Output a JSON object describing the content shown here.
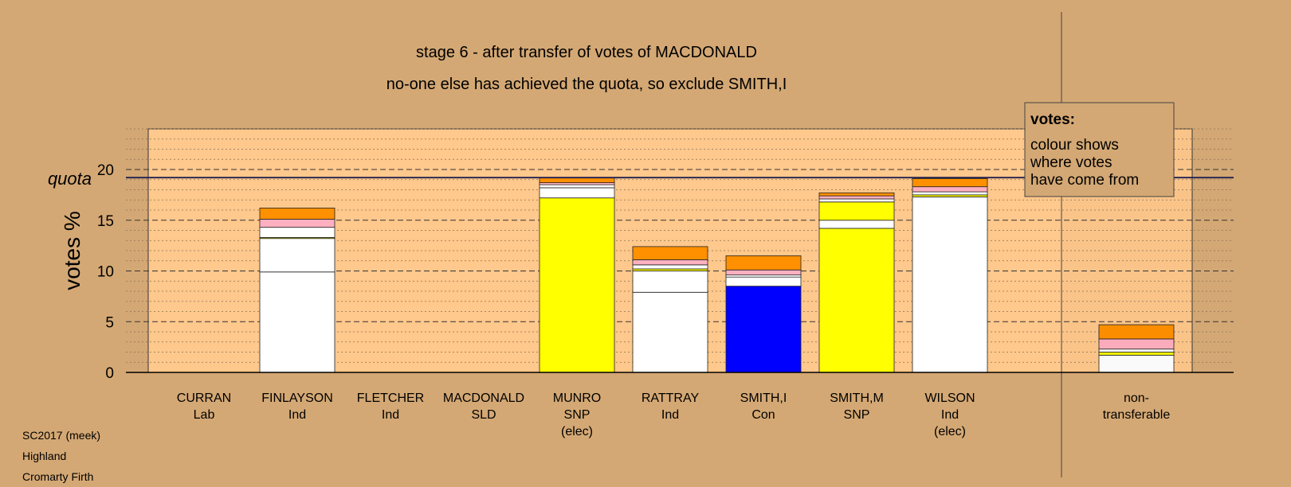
{
  "chart_data": {
    "type": "bar",
    "stacked": true,
    "title": "stage 6 - after transfer of votes of MACDONALD",
    "subtitle": "no-one else has achieved the quota, so exclude SMITH,I",
    "ylabel": "votes %",
    "quota_label": "quota",
    "quota": 19.2,
    "ylim": [
      0,
      24
    ],
    "yticks": [
      0,
      5,
      10,
      15,
      20
    ],
    "grid": true,
    "candidates": [
      {
        "name": "CURRAN",
        "party": "Lab",
        "note": "",
        "segments": []
      },
      {
        "name": "FINLAYSON",
        "party": "Ind",
        "note": "",
        "segments": [
          {
            "color": "#ffffff",
            "value": 9.9
          },
          {
            "color": "#ffffff",
            "value": 3.3
          },
          {
            "color": "#ffff00",
            "value": 0.1
          },
          {
            "color": "#ffffff",
            "value": 1.0
          },
          {
            "color": "#ffb0c0",
            "value": 0.8
          },
          {
            "color": "#ff9000",
            "value": 1.1
          }
        ]
      },
      {
        "name": "FLETCHER",
        "party": "Ind",
        "note": "",
        "segments": []
      },
      {
        "name": "MACDONALD",
        "party": "SLD",
        "note": "",
        "segments": []
      },
      {
        "name": "MUNRO",
        "party": "SNP",
        "note": "(elec)",
        "segments": [
          {
            "color": "#ffff00",
            "value": 17.2
          },
          {
            "color": "#ffffff",
            "value": 1.0
          },
          {
            "color": "#ffffff",
            "value": 0.3
          },
          {
            "color": "#ffb0c0",
            "value": 0.2
          },
          {
            "color": "#ff9000",
            "value": 0.5
          }
        ]
      },
      {
        "name": "RATTRAY",
        "party": "Ind",
        "note": "",
        "segments": [
          {
            "color": "#ffffff",
            "value": 7.9
          },
          {
            "color": "#ffffff",
            "value": 2.1
          },
          {
            "color": "#ffff00",
            "value": 0.2
          },
          {
            "color": "#ffffff",
            "value": 0.4
          },
          {
            "color": "#ffb0c0",
            "value": 0.5
          },
          {
            "color": "#ff9000",
            "value": 1.3
          }
        ]
      },
      {
        "name": "SMITH,I",
        "party": "Con",
        "note": "",
        "segments": [
          {
            "color": "#0000ff",
            "value": 8.5
          },
          {
            "color": "#ffffff",
            "value": 0.9
          },
          {
            "color": "#ffffff",
            "value": 0.2
          },
          {
            "color": "#ffb0c0",
            "value": 0.5
          },
          {
            "color": "#ff9000",
            "value": 1.4
          }
        ]
      },
      {
        "name": "SMITH,M",
        "party": "SNP",
        "note": "",
        "segments": [
          {
            "color": "#ffff00",
            "value": 14.2
          },
          {
            "color": "#ffffff",
            "value": 0.8
          },
          {
            "color": "#ffff00",
            "value": 1.8
          },
          {
            "color": "#ffffff",
            "value": 0.3
          },
          {
            "color": "#ffb0c0",
            "value": 0.3
          },
          {
            "color": "#ff9000",
            "value": 0.3
          }
        ]
      },
      {
        "name": "WILSON",
        "party": "Ind",
        "note": "(elec)",
        "segments": [
          {
            "color": "#ffffff",
            "value": 17.3
          },
          {
            "color": "#ffff00",
            "value": 0.2
          },
          {
            "color": "#ffffff",
            "value": 0.3
          },
          {
            "color": "#ffb0c0",
            "value": 0.5
          },
          {
            "color": "#ff9000",
            "value": 0.8
          }
        ]
      },
      {
        "name": "non-",
        "party": "transferable",
        "note": "",
        "segments": [
          {
            "color": "#ffffff",
            "value": 1.7
          },
          {
            "color": "#ffff00",
            "value": 0.3
          },
          {
            "color": "#ffffff",
            "value": 0.3
          },
          {
            "color": "#ffb0c0",
            "value": 1.0
          },
          {
            "color": "#ff9000",
            "value": 1.4
          }
        ]
      }
    ],
    "legend": {
      "title": "votes:",
      "lines": [
        "colour shows",
        "where votes",
        "have come from"
      ]
    }
  },
  "colors": {
    "background": "#d4a874",
    "plot_area": "#ffc88c",
    "quota_line": "#202050"
  },
  "footer": [
    "SC2017 (meek)",
    "Highland",
    "Cromarty Firth"
  ]
}
